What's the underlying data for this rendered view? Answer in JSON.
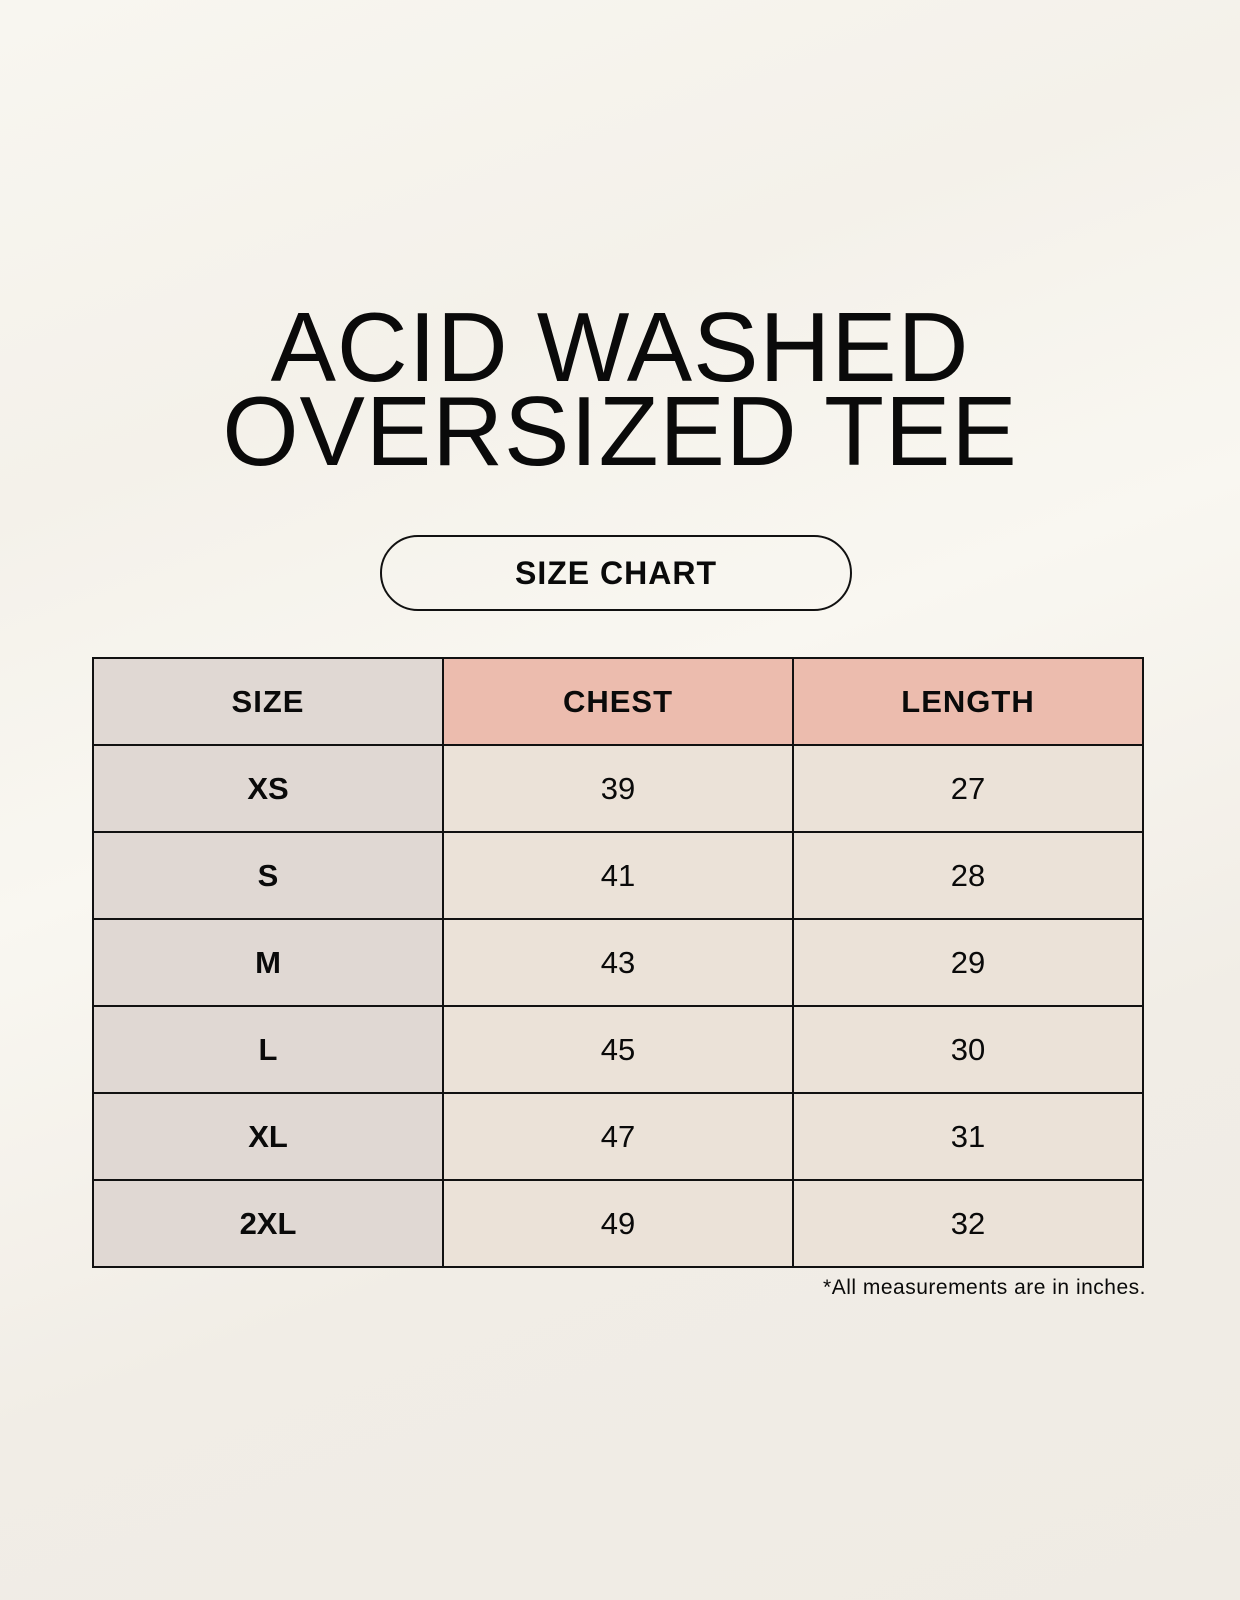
{
  "title": {
    "line1": "ACID WASHED",
    "line2": "OVERSIZED TEE"
  },
  "subtitle": "SIZE CHART",
  "table": {
    "headers": [
      "SIZE",
      "CHEST",
      "LENGTH"
    ],
    "rows": [
      [
        "XS",
        "39",
        "27"
      ],
      [
        "S",
        "41",
        "28"
      ],
      [
        "M",
        "43",
        "29"
      ],
      [
        "L",
        "45",
        "30"
      ],
      [
        "XL",
        "47",
        "31"
      ],
      [
        "2XL",
        "49",
        "32"
      ]
    ]
  },
  "footnote": "*All measurements are in inches.",
  "colors": {
    "size_column": "#e0d8d3",
    "header_accent": "#ecbcae",
    "value_cells": "#ebe2d8"
  }
}
